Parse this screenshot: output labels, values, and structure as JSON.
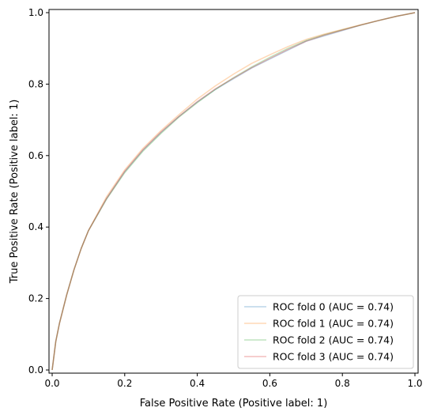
{
  "chart_data": {
    "type": "line",
    "title": "",
    "xlabel": "False Positive Rate (Positive label: 1)",
    "ylabel": "True Positive Rate (Positive label: 1)",
    "xlim": [
      0.0,
      1.0
    ],
    "ylim": [
      0.0,
      1.0
    ],
    "x_ticks": [
      0.0,
      0.2,
      0.4,
      0.6,
      0.8,
      1.0
    ],
    "y_ticks": [
      0.0,
      0.2,
      0.4,
      0.6,
      0.8,
      1.0
    ],
    "x_tick_labels": [
      "0.0",
      "0.2",
      "0.4",
      "0.6",
      "0.8",
      "1.0"
    ],
    "y_tick_labels": [
      "0.0",
      "0.2",
      "0.4",
      "0.6",
      "0.8",
      "1.0"
    ],
    "grid": false,
    "legend_position": "lower-right",
    "series": [
      {
        "name": "ROC fold 0 (AUC = 0.74)",
        "color": "#1f77b4",
        "opacity": 0.3,
        "x": [
          0.0,
          0.01,
          0.02,
          0.04,
          0.06,
          0.08,
          0.1,
          0.15,
          0.2,
          0.25,
          0.3,
          0.35,
          0.4,
          0.45,
          0.5,
          0.55,
          0.6,
          0.65,
          0.7,
          0.75,
          0.8,
          0.85,
          0.9,
          0.95,
          1.0
        ],
        "y": [
          0.0,
          0.08,
          0.13,
          0.21,
          0.28,
          0.34,
          0.39,
          0.48,
          0.555,
          0.615,
          0.665,
          0.71,
          0.75,
          0.785,
          0.815,
          0.845,
          0.87,
          0.895,
          0.92,
          0.935,
          0.95,
          0.965,
          0.978,
          0.99,
          1.0
        ]
      },
      {
        "name": "ROC fold 1 (AUC = 0.74)",
        "color": "#ff7f0e",
        "opacity": 0.3,
        "x": [
          0.0,
          0.01,
          0.02,
          0.04,
          0.06,
          0.08,
          0.1,
          0.15,
          0.2,
          0.25,
          0.3,
          0.35,
          0.4,
          0.45,
          0.5,
          0.55,
          0.6,
          0.65,
          0.7,
          0.75,
          0.8,
          0.85,
          0.9,
          0.95,
          1.0
        ],
        "y": [
          0.0,
          0.08,
          0.13,
          0.21,
          0.28,
          0.34,
          0.39,
          0.485,
          0.56,
          0.62,
          0.67,
          0.715,
          0.758,
          0.795,
          0.828,
          0.858,
          0.882,
          0.905,
          0.925,
          0.94,
          0.953,
          0.966,
          0.978,
          0.99,
          1.0
        ]
      },
      {
        "name": "ROC fold 2 (AUC = 0.74)",
        "color": "#2ca02c",
        "opacity": 0.3,
        "x": [
          0.0,
          0.01,
          0.02,
          0.04,
          0.06,
          0.08,
          0.1,
          0.15,
          0.2,
          0.25,
          0.3,
          0.35,
          0.4,
          0.45,
          0.5,
          0.55,
          0.6,
          0.65,
          0.7,
          0.75,
          0.8,
          0.85,
          0.9,
          0.95,
          1.0
        ],
        "y": [
          0.0,
          0.08,
          0.13,
          0.21,
          0.28,
          0.34,
          0.39,
          0.478,
          0.552,
          0.612,
          0.662,
          0.708,
          0.748,
          0.785,
          0.818,
          0.848,
          0.875,
          0.9,
          0.922,
          0.938,
          0.952,
          0.965,
          0.978,
          0.99,
          1.0
        ]
      },
      {
        "name": "ROC fold 3 (AUC = 0.74)",
        "color": "#d62728",
        "opacity": 0.3,
        "x": [
          0.0,
          0.01,
          0.02,
          0.04,
          0.06,
          0.08,
          0.1,
          0.15,
          0.2,
          0.25,
          0.3,
          0.35,
          0.4,
          0.45,
          0.5,
          0.55,
          0.6,
          0.65,
          0.7,
          0.75,
          0.8,
          0.85,
          0.9,
          0.95,
          1.0
        ],
        "y": [
          0.0,
          0.08,
          0.13,
          0.21,
          0.28,
          0.34,
          0.39,
          0.48,
          0.556,
          0.616,
          0.666,
          0.71,
          0.751,
          0.787,
          0.817,
          0.846,
          0.872,
          0.897,
          0.92,
          0.937,
          0.951,
          0.965,
          0.978,
          0.99,
          1.0
        ]
      }
    ]
  }
}
